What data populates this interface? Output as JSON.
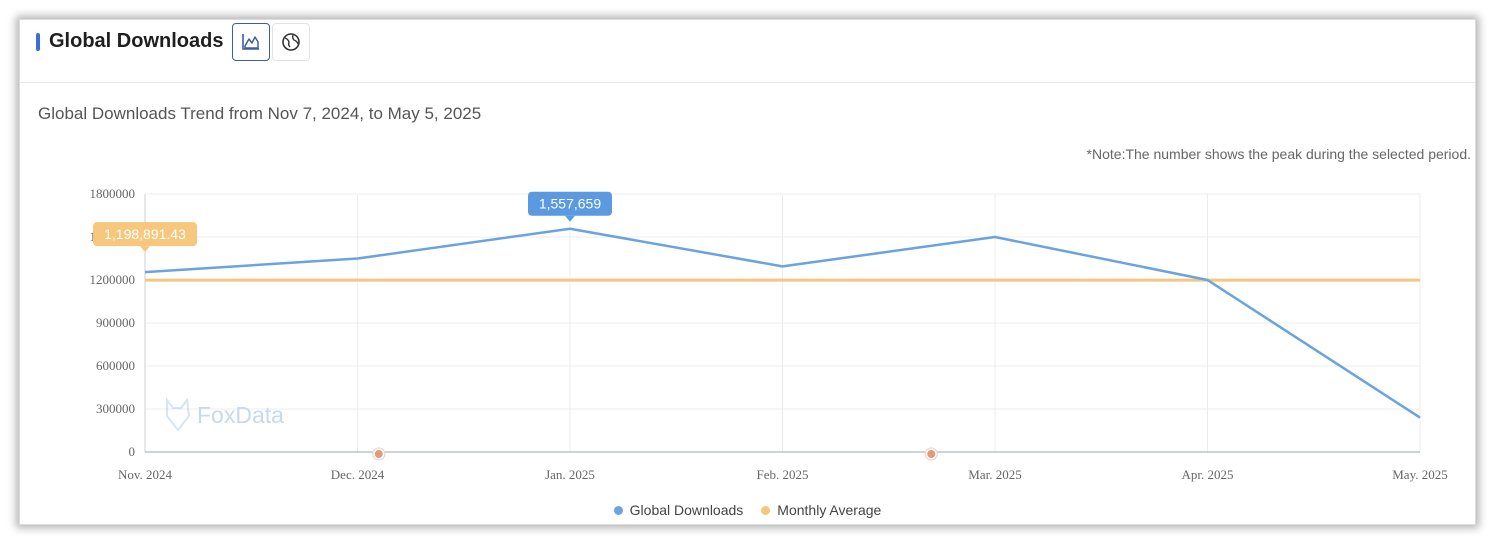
{
  "header": {
    "title": "Global Downloads",
    "buttons": [
      {
        "icon": "line-chart-icon",
        "active": true
      },
      {
        "icon": "globe-icon",
        "active": false
      }
    ]
  },
  "chart_title": "Global Downloads Trend from Nov 7, 2024, to May 5, 2025",
  "note": "*Note:The number shows the peak during the selected period.",
  "watermark": "FoxData",
  "colors": {
    "downloads": "#6aa3dd",
    "average": "#f4c67f",
    "peak_label_bg": "#5b9ae0",
    "avg_label_bg": "#f7c77e",
    "event_marker": "#e39a78",
    "grid": "#ececec",
    "accent": "#3a6fd8"
  },
  "chart_data": {
    "type": "line",
    "categories": [
      "Nov. 2024",
      "Dec. 2024",
      "Jan. 2025",
      "Feb. 2025",
      "Mar. 2025",
      "Apr. 2025",
      "May. 2025"
    ],
    "series": [
      {
        "name": "Global Downloads",
        "values": [
          1255000,
          1350000,
          1557659,
          1295000,
          1500000,
          1200000,
          240000
        ]
      },
      {
        "name": "Monthly Average",
        "values": [
          1198891.43,
          1198891.43,
          1198891.43,
          1198891.43,
          1198891.43,
          1198891.43,
          1198891.43
        ]
      }
    ],
    "y_ticks": [
      "0",
      "300000",
      "600000",
      "900000",
      "1200000",
      "1500000",
      "1800000"
    ],
    "ylim": [
      0,
      1800000
    ],
    "peak_label": "1,557,659",
    "average_label": "1,198,891.43",
    "event_markers_x": [
      1.1,
      3.7
    ],
    "grid": true,
    "legend_position": "bottom"
  }
}
